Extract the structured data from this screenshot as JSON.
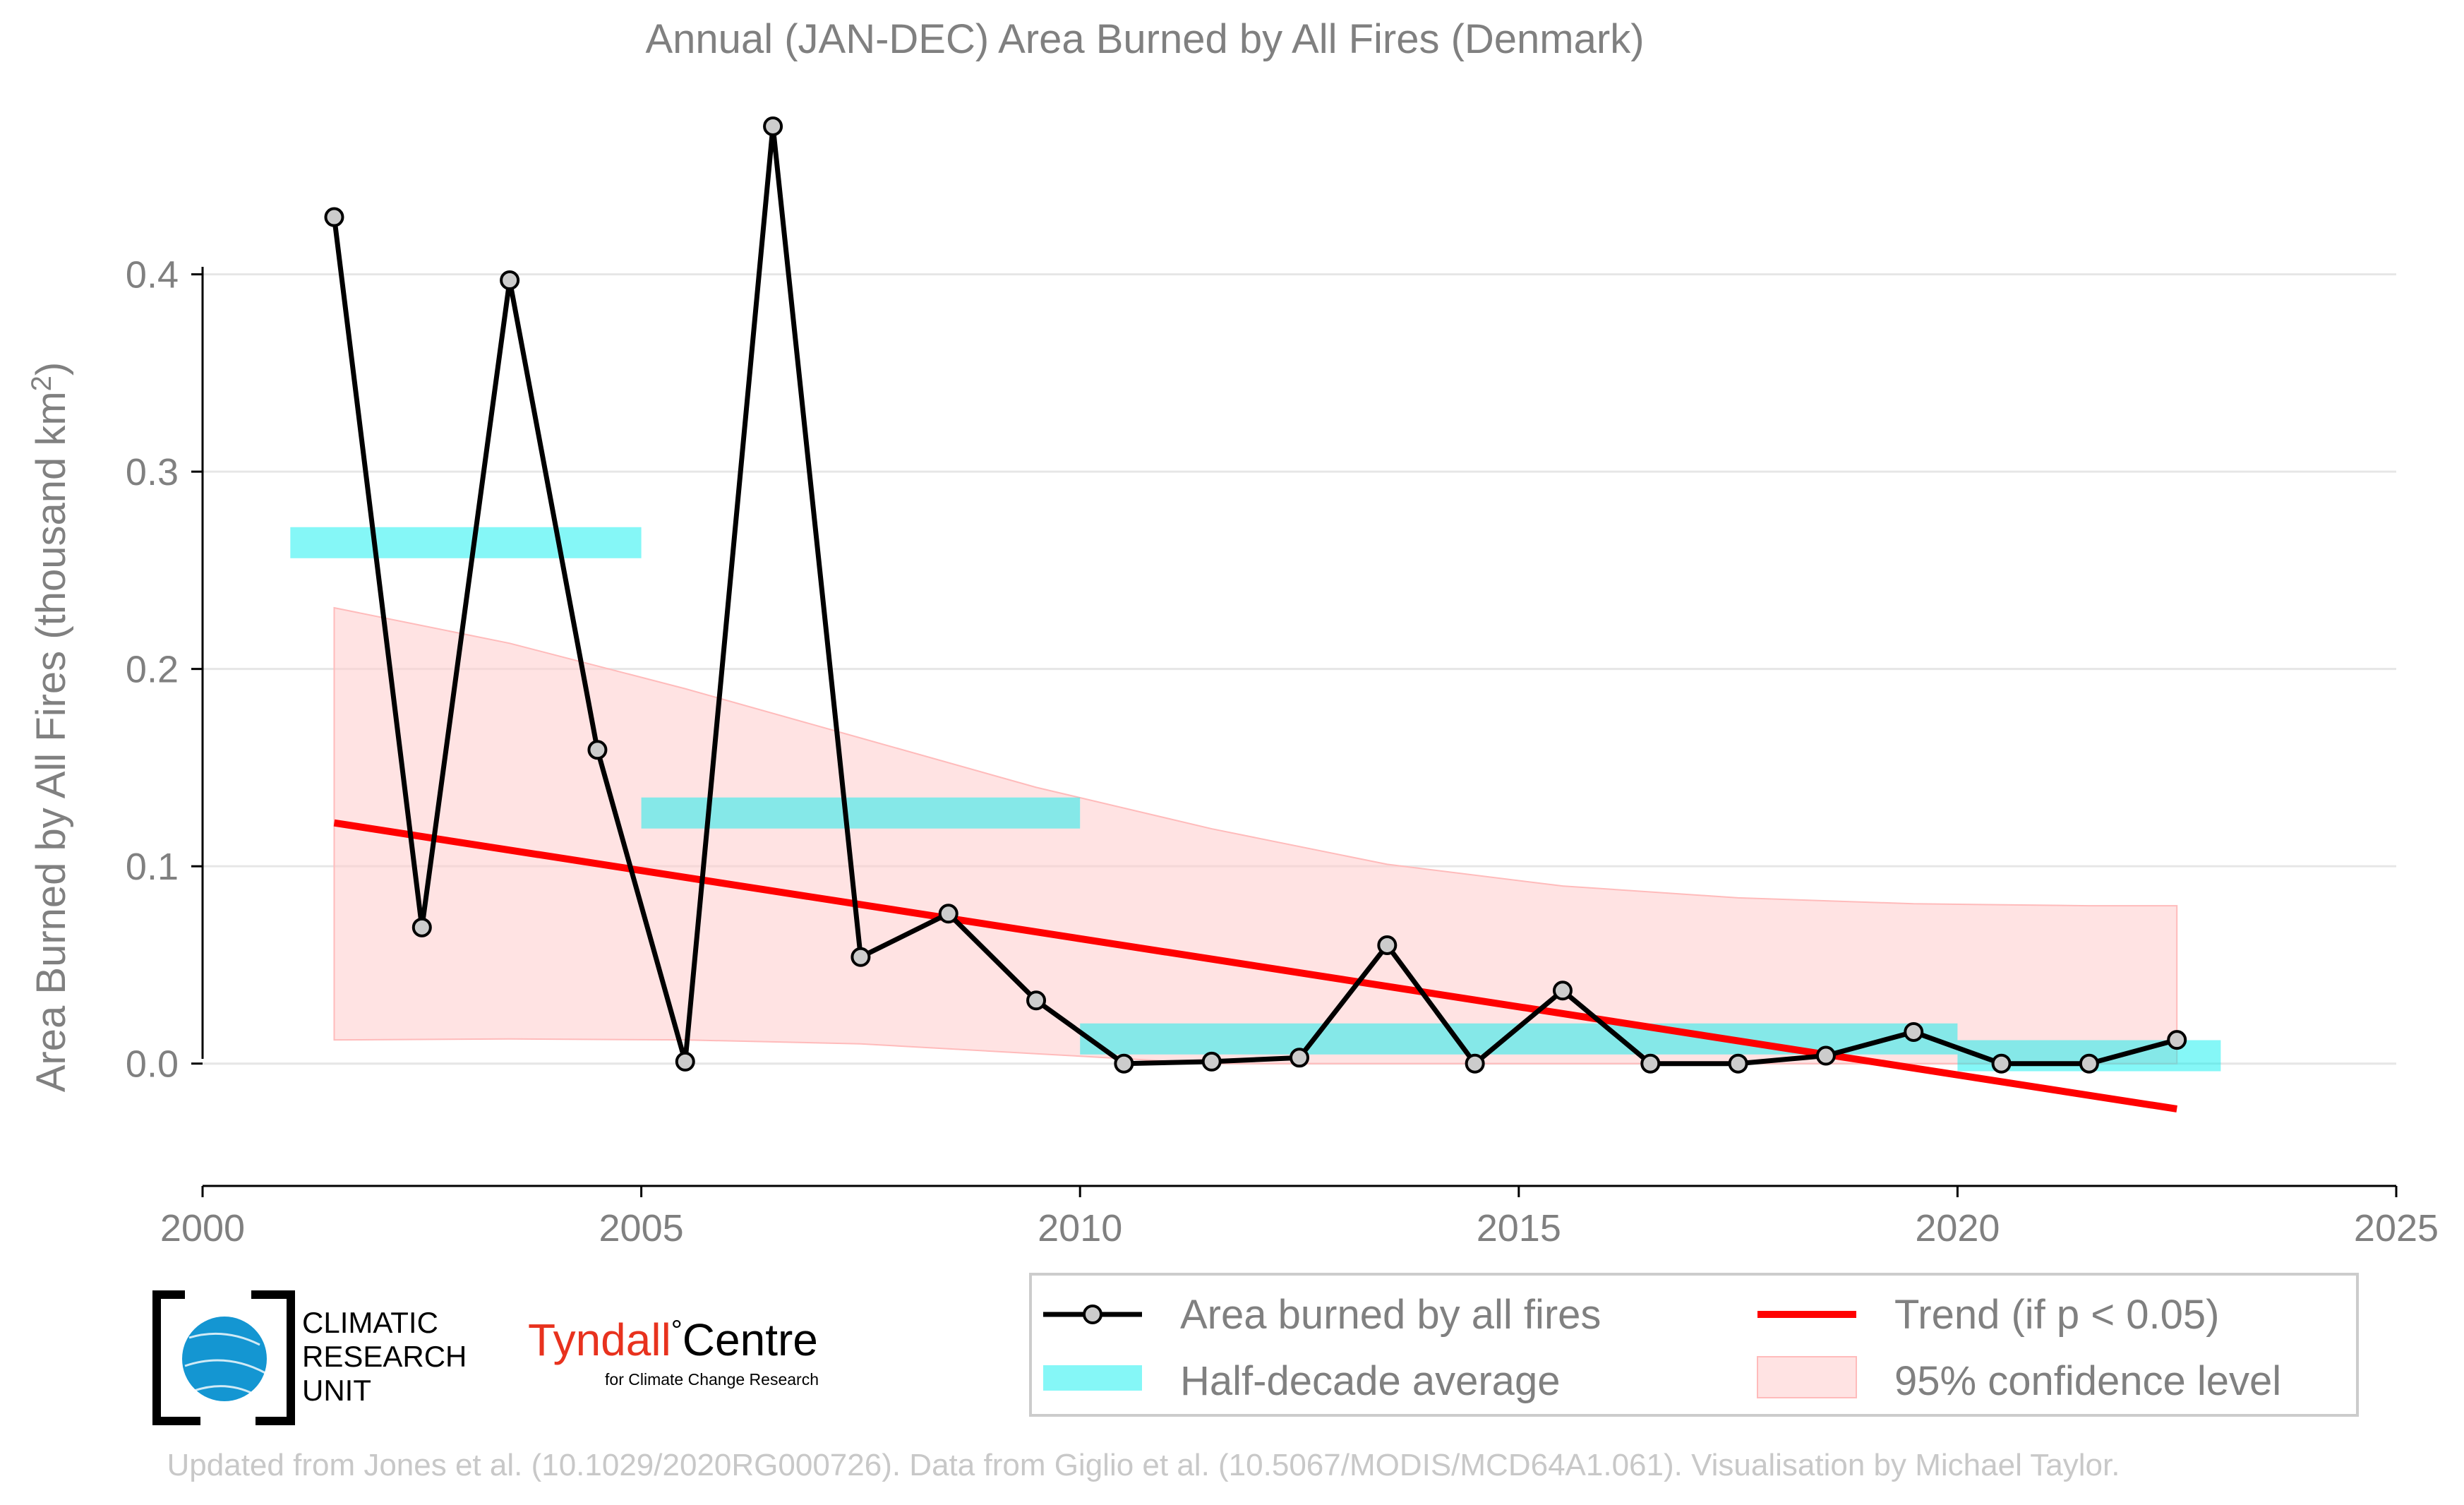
{
  "chart_data": {
    "type": "line",
    "title": "Annual (JAN-DEC) Area Burned by All Fires (Denmark)",
    "xlabel": "",
    "ylabel": "Area Burned by All Fires (thousand km",
    "ylabel_sup": "2",
    "ylabel_close": ")",
    "xlim": [
      2000,
      2025
    ],
    "ylim": [
      -0.062,
      0.48
    ],
    "x_ticks": [
      2000,
      2005,
      2010,
      2015,
      2020,
      2025
    ],
    "x_tick_labels": [
      "2000",
      "2005",
      "2010",
      "2015",
      "2020",
      "2025"
    ],
    "y_ticks": [
      0.0,
      0.1,
      0.2,
      0.3,
      0.4
    ],
    "y_tick_labels": [
      "0.0",
      "0.1",
      "0.2",
      "0.3",
      "0.4"
    ],
    "grid": "horizontal",
    "legend_position": "bottom-right",
    "series": [
      {
        "name": "Area burned by all fires",
        "kind": "line-markers",
        "color": "#000000",
        "marker_fill": "#cccccc",
        "x": [
          2001.5,
          2002.5,
          2003.5,
          2004.5,
          2005.5,
          2006.5,
          2007.5,
          2008.5,
          2009.5,
          2010.5,
          2011.5,
          2012.5,
          2013.5,
          2014.5,
          2015.5,
          2016.5,
          2017.5,
          2018.5,
          2019.5,
          2020.5,
          2021.5,
          2022.5
        ],
        "y": [
          0.429,
          0.069,
          0.397,
          0.159,
          0.001,
          0.475,
          0.054,
          0.076,
          0.032,
          0.0,
          0.001,
          0.003,
          0.06,
          0.0,
          0.037,
          0.0,
          0.0,
          0.004,
          0.016,
          0.0,
          0.0,
          0.012
        ]
      },
      {
        "name": "Half-decade average",
        "kind": "bars",
        "color": "#00eeee",
        "segments": [
          {
            "x_start": 2001.0,
            "x_end": 2005.0,
            "y": 0.264
          },
          {
            "x_start": 2005.0,
            "x_end": 2010.0,
            "y": 0.127
          },
          {
            "x_start": 2010.0,
            "x_end": 2020.0,
            "y": 0.0125
          },
          {
            "x_start": 2020.0,
            "x_end": 2023.0,
            "y": 0.004
          }
        ]
      },
      {
        "name": "Trend (if p < 0.05)",
        "kind": "line",
        "color": "#ff0000",
        "x": [
          2001.5,
          2022.5
        ],
        "y": [
          0.122,
          -0.023
        ]
      },
      {
        "name": "95% confidence level",
        "kind": "band",
        "color": "#ffcccc",
        "x": [
          2001.5,
          2003.5,
          2005.5,
          2007.5,
          2009.5,
          2011.5,
          2013.5,
          2015.5,
          2017.5,
          2019.5,
          2021.5,
          2022.5
        ],
        "upper": [
          0.231,
          0.213,
          0.19,
          0.165,
          0.14,
          0.119,
          0.101,
          0.09,
          0.084,
          0.081,
          0.08,
          0.08
        ],
        "lower": [
          0.012,
          0.0125,
          0.012,
          0.01,
          0.005,
          0.0,
          0.0,
          0.0,
          0.0,
          0.0,
          0.0,
          0.0
        ]
      }
    ]
  },
  "logos": {
    "cru_line1": "CLIMATIC",
    "cru_line2": "RESEARCH",
    "cru_line3": "UNIT",
    "tyndall_left": "Tyndall",
    "tyndall_degree": "°",
    "tyndall_right": "Centre",
    "tyndall_sub": "for Climate Change Research"
  },
  "footer": {
    "credit": "Updated from Jones et al. (10.1029/2020RG000726). Data from Giglio et al. (10.5067/MODIS/MCD64A1.061). Visualisation by Michael Taylor."
  },
  "colors": {
    "text_gray": "#808080",
    "grid": "#e6e6e6",
    "axis": "#000000",
    "footer_text": "#c8c8c8",
    "tyndall_red": "#e8321e",
    "cru_blue": "#1496d2"
  }
}
